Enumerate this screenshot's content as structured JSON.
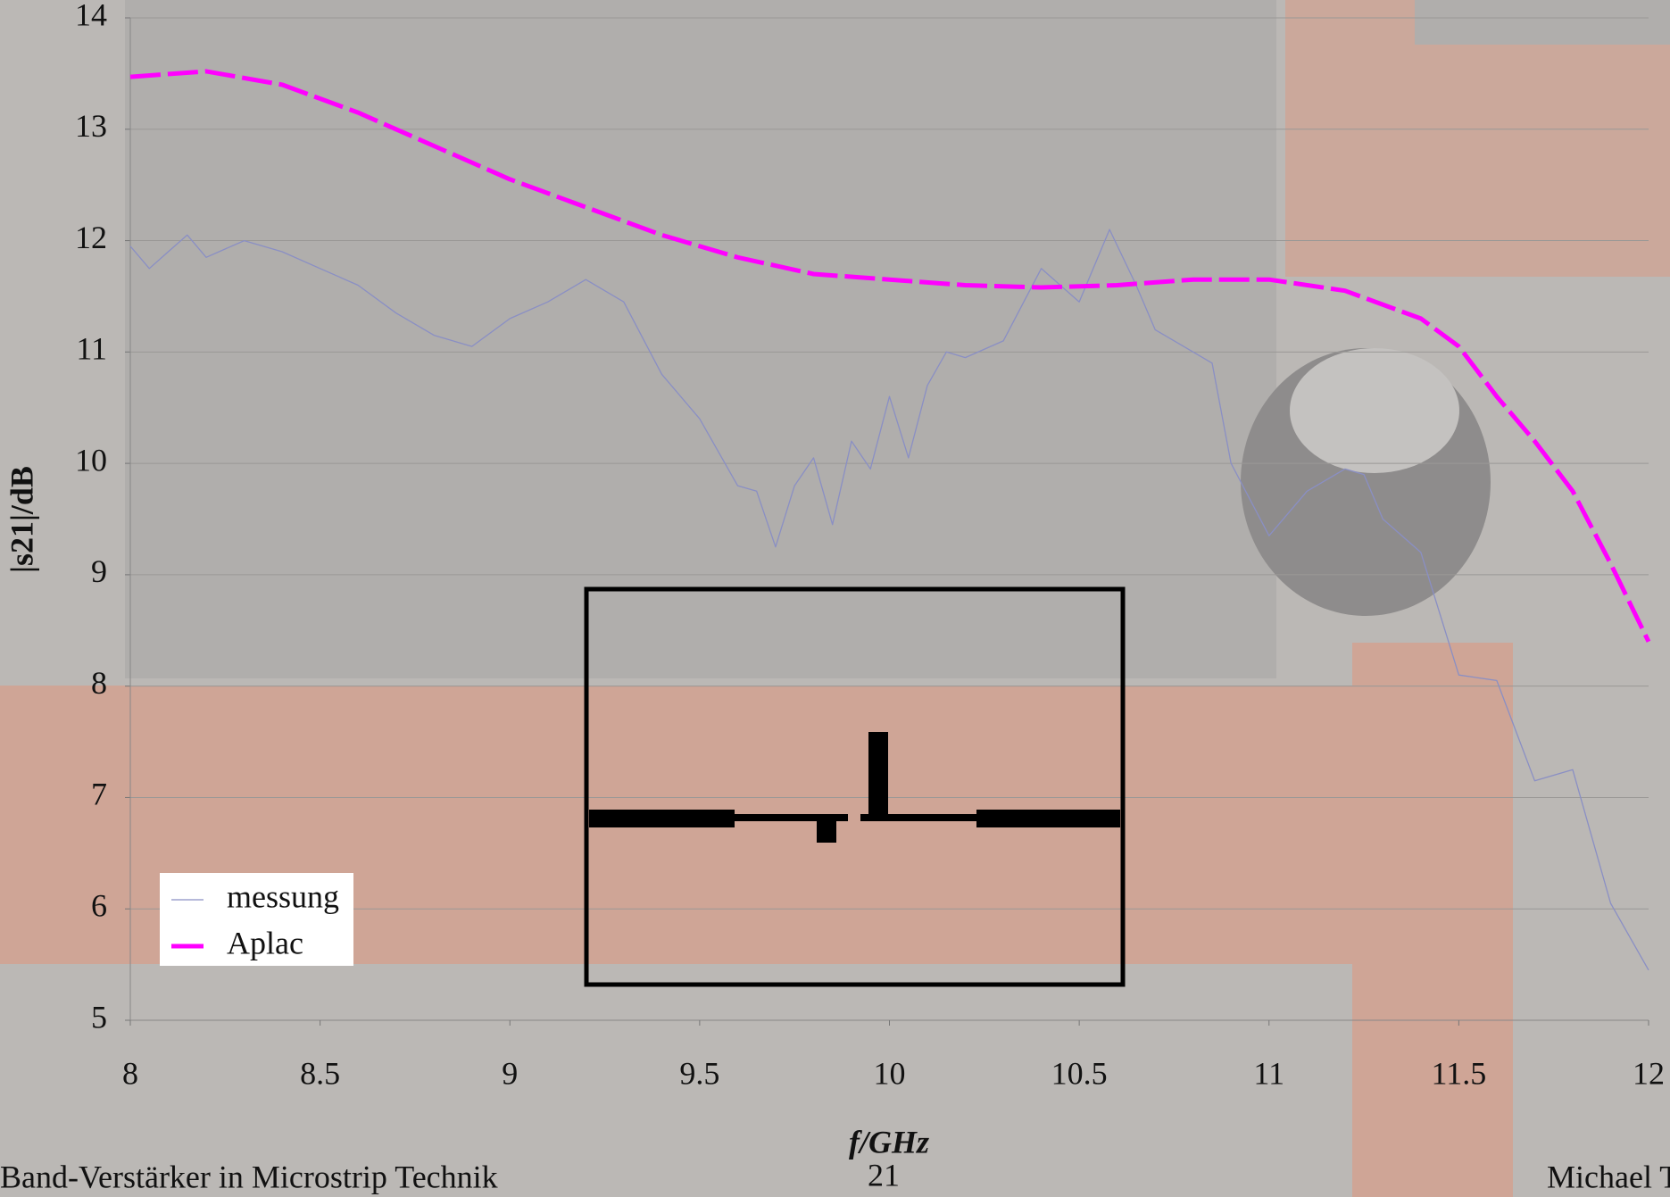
{
  "chart_data": {
    "type": "line",
    "xlabel": "f/GHz",
    "ylabel": "|s21|/dB",
    "xlim": [
      8,
      12
    ],
    "xticks": [
      8,
      8.5,
      9,
      9.5,
      10,
      10.5,
      11,
      11.5,
      12
    ],
    "ylim": [
      5,
      14
    ],
    "yticks": [
      5,
      6,
      7,
      8,
      9,
      10,
      11,
      12,
      13,
      14
    ],
    "grid": true,
    "legend": "lower left",
    "series": [
      {
        "name": "messung",
        "color": "#8a8fc4",
        "dashed": false,
        "x": [
          8,
          8.05,
          8.1,
          8.15,
          8.2,
          8.3,
          8.4,
          8.5,
          8.6,
          8.7,
          8.8,
          8.9,
          9.0,
          9.1,
          9.2,
          9.3,
          9.4,
          9.5,
          9.6,
          9.65,
          9.7,
          9.75,
          9.8,
          9.85,
          9.9,
          9.95,
          10.0,
          10.05,
          10.1,
          10.15,
          10.2,
          10.3,
          10.4,
          10.5,
          10.58,
          10.65,
          10.7,
          10.8,
          10.85,
          10.9,
          11.0,
          11.1,
          11.2,
          11.25,
          11.3,
          11.4,
          11.5,
          11.6,
          11.7,
          11.8,
          11.9,
          12.0
        ],
        "values": [
          11.95,
          11.75,
          11.9,
          12.05,
          11.85,
          12.0,
          11.9,
          11.75,
          11.6,
          11.35,
          11.15,
          11.05,
          11.3,
          11.45,
          11.65,
          11.45,
          10.8,
          10.4,
          9.8,
          9.75,
          9.25,
          9.8,
          10.05,
          9.45,
          10.2,
          9.95,
          10.6,
          10.05,
          10.7,
          11.0,
          10.95,
          11.1,
          11.75,
          11.45,
          12.1,
          11.6,
          11.2,
          11.0,
          10.9,
          10.0,
          9.35,
          9.75,
          9.95,
          9.9,
          9.5,
          9.2,
          8.1,
          8.05,
          7.15,
          7.25,
          6.05,
          5.45
        ]
      },
      {
        "name": "Aplac",
        "color": "#ff00ff",
        "dashed": true,
        "x": [
          8,
          8.2,
          8.4,
          8.6,
          8.8,
          9.0,
          9.2,
          9.4,
          9.6,
          9.8,
          10.0,
          10.2,
          10.4,
          10.6,
          10.8,
          11.0,
          11.2,
          11.4,
          11.5,
          11.6,
          11.7,
          11.8,
          11.9,
          12.0
        ],
        "values": [
          13.47,
          13.52,
          13.4,
          13.15,
          12.85,
          12.55,
          12.3,
          12.05,
          11.85,
          11.7,
          11.65,
          11.6,
          11.58,
          11.6,
          11.65,
          11.65,
          11.55,
          11.3,
          11.05,
          10.6,
          10.2,
          9.75,
          9.1,
          8.4
        ]
      }
    ]
  },
  "footer": {
    "left": "Band-Verstärker in Microstrip Technik",
    "page": "21",
    "right": "Michael T"
  }
}
